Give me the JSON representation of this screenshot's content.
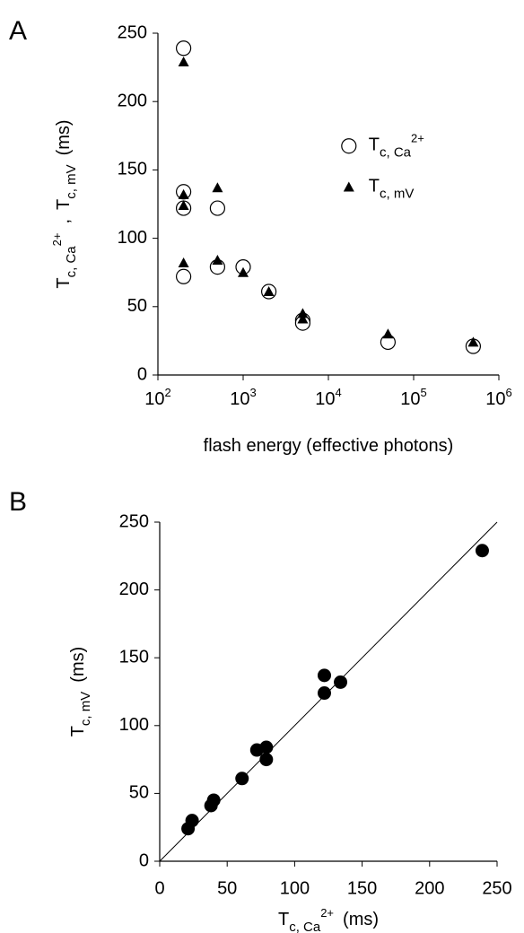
{
  "chart_data": [
    {
      "type": "scatter",
      "panel": "A",
      "log_x": true,
      "legend": "upper right",
      "xlabel": [
        {
          "text": "flash energy (effective photons)"
        }
      ],
      "ylabel": [
        {
          "text": "T"
        },
        {
          "text": "c, Ca",
          "style": "sub"
        },
        {
          "text": "2+",
          "style": "sup"
        },
        {
          "text": ","
        },
        {
          "text": "T"
        },
        {
          "text": "c, mV",
          "style": "sub"
        },
        {
          "text": "(ms)"
        }
      ],
      "xlim": [
        100,
        1000000
      ],
      "xticks": [
        {
          "value": 100,
          "label": [
            {
              "text": "10"
            },
            {
              "text": "2",
              "style": "sup"
            }
          ]
        },
        {
          "value": 1000,
          "label": [
            {
              "text": "10"
            },
            {
              "text": "3",
              "style": "sup"
            }
          ]
        },
        {
          "value": 10000,
          "label": [
            {
              "text": "10"
            },
            {
              "text": "4",
              "style": "sup"
            }
          ]
        },
        {
          "value": 100000,
          "label": [
            {
              "text": "10"
            },
            {
              "text": "5",
              "style": "sup"
            }
          ]
        },
        {
          "value": 1000000,
          "label": [
            {
              "text": "10"
            },
            {
              "text": "6",
              "style": "sup"
            }
          ]
        }
      ],
      "ylim": [
        0,
        250
      ],
      "yticks": [
        0,
        50,
        100,
        150,
        200,
        250
      ],
      "series": [
        {
          "name": [
            {
              "text": "T"
            },
            {
              "text": "c, Ca",
              "style": "sub"
            },
            {
              "text": "2+",
              "style": "sup"
            }
          ],
          "marker": "circle-open",
          "color": "#000000",
          "x": [
            200,
            200,
            200,
            200,
            500,
            500,
            1000,
            2000,
            5000,
            5000,
            50000,
            500000
          ],
          "values": [
            239,
            134,
            122,
            72,
            122,
            79,
            79,
            61,
            40,
            38,
            24,
            21
          ]
        },
        {
          "name": [
            {
              "text": "T"
            },
            {
              "text": "c, mV",
              "style": "sub"
            }
          ],
          "marker": "triangle",
          "color": "#000000",
          "x": [
            200,
            200,
            200,
            200,
            500,
            500,
            1000,
            2000,
            5000,
            5000,
            50000,
            500000
          ],
          "values": [
            229,
            132,
            124,
            82,
            137,
            84,
            75,
            61,
            45,
            41,
            30,
            24
          ]
        }
      ]
    },
    {
      "type": "scatter",
      "panel": "B",
      "log_x": false,
      "identity_line": true,
      "xlabel": [
        {
          "text": "T"
        },
        {
          "text": "c, Ca",
          "style": "sub"
        },
        {
          "text": "2+",
          "style": "sup"
        },
        {
          "text": "(ms)"
        }
      ],
      "ylabel": [
        {
          "text": "T"
        },
        {
          "text": "c, mV",
          "style": "sub"
        },
        {
          "text": "(ms)"
        }
      ],
      "xlim": [
        0,
        250
      ],
      "xticks": [
        0,
        50,
        100,
        150,
        200,
        250
      ],
      "ylim": [
        0,
        250
      ],
      "yticks": [
        0,
        50,
        100,
        150,
        200,
        250
      ],
      "series": [
        {
          "marker": "circle-filled",
          "color": "#000000",
          "x": [
            239,
            134,
            122,
            72,
            122,
            79,
            79,
            61,
            40,
            38,
            24,
            21
          ],
          "values": [
            229,
            132,
            124,
            82,
            137,
            84,
            75,
            61,
            45,
            41,
            30,
            24
          ]
        }
      ]
    }
  ]
}
